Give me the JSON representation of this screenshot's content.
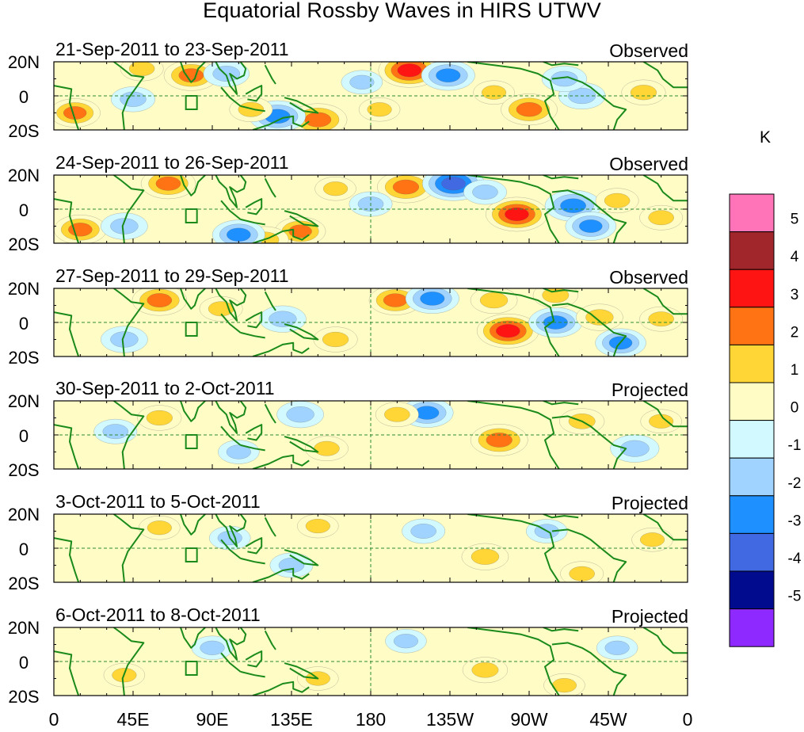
{
  "title": "Equatorial Rossby Waves in HIRS UTWV",
  "chart_data": {
    "type": "heatmap",
    "title": "Equatorial Rossby Waves in HIRS UTWV",
    "variable": "HIRS UTWV anomaly",
    "units": "K",
    "lat_range": [
      -20,
      20
    ],
    "lon_range": [
      0,
      360
    ],
    "y_ticks": [
      "20N",
      "0",
      "20S"
    ],
    "x_ticks": [
      "0",
      "45E",
      "90E",
      "135E",
      "180",
      "135W",
      "90W",
      "45W",
      "0"
    ],
    "colorbar": {
      "label": "K",
      "tick_labels": [
        "5",
        "4",
        "3",
        "2",
        "1",
        "0",
        "-1",
        "-2",
        "-3",
        "-4",
        "-5"
      ],
      "colors": [
        "#ff73b9",
        "#a0262b",
        "#ff1414",
        "#ff7315",
        "#ffd635",
        "#fffcc6",
        "#d2f9ff",
        "#a0d3ff",
        "#1e90ff",
        "#4169e1",
        "#000b8e",
        "#8e29ff"
      ]
    },
    "panels": [
      {
        "period": "21-Sep-2011 to 23-Sep-2011",
        "status": "Observed",
        "features": [
          {
            "lon": 78,
            "lat": 12,
            "value": 2.4
          },
          {
            "lon": 50,
            "lat": 16,
            "value": 1.2
          },
          {
            "lon": 12,
            "lat": -10,
            "value": 2.0
          },
          {
            "lon": 202,
            "lat": 15,
            "value": 3.2
          },
          {
            "lon": 224,
            "lat": 12,
            "value": -2.3
          },
          {
            "lon": 250,
            "lat": 2,
            "value": 1.0
          },
          {
            "lon": 270,
            "lat": -8,
            "value": 2.6
          },
          {
            "lon": 150,
            "lat": -14,
            "value": 2.8
          },
          {
            "lon": 127,
            "lat": -12,
            "value": -2.6
          },
          {
            "lon": 98,
            "lat": 13,
            "value": -1.5
          },
          {
            "lon": 300,
            "lat": 0,
            "value": -1.6
          },
          {
            "lon": 290,
            "lat": 10,
            "value": -1.4
          },
          {
            "lon": 112,
            "lat": -8,
            "value": 1.2
          },
          {
            "lon": 45,
            "lat": -2,
            "value": -1.3
          },
          {
            "lon": 335,
            "lat": 2,
            "value": 1.3
          },
          {
            "lon": 175,
            "lat": 8,
            "value": -1.0
          },
          {
            "lon": 185,
            "lat": -8,
            "value": 1.0
          }
        ]
      },
      {
        "period": "24-Sep-2011 to 26-Sep-2011",
        "status": "Observed",
        "features": [
          {
            "lon": 65,
            "lat": 15,
            "value": 2.4
          },
          {
            "lon": 200,
            "lat": 13,
            "value": 2.7
          },
          {
            "lon": 227,
            "lat": 15,
            "value": -3.2
          },
          {
            "lon": 263,
            "lat": -3,
            "value": 3.2
          },
          {
            "lon": 295,
            "lat": 2,
            "value": -2.6
          },
          {
            "lon": 305,
            "lat": -10,
            "value": -2.0
          },
          {
            "lon": 140,
            "lat": -13,
            "value": 2.0
          },
          {
            "lon": 120,
            "lat": -18,
            "value": 1.6
          },
          {
            "lon": 15,
            "lat": -12,
            "value": 2.2
          },
          {
            "lon": 40,
            "lat": -10,
            "value": -1.6
          },
          {
            "lon": 105,
            "lat": -15,
            "value": -2.2
          },
          {
            "lon": 320,
            "lat": 5,
            "value": 1.2
          },
          {
            "lon": 180,
            "lat": 3,
            "value": -1.2
          },
          {
            "lon": 160,
            "lat": 12,
            "value": 1.0
          },
          {
            "lon": 245,
            "lat": 10,
            "value": -1.2
          },
          {
            "lon": 345,
            "lat": -5,
            "value": 1.2
          }
        ]
      },
      {
        "period": "27-Sep-2011 to 29-Sep-2011",
        "status": "Observed",
        "features": [
          {
            "lon": 60,
            "lat": 13,
            "value": 2.4
          },
          {
            "lon": 194,
            "lat": 13,
            "value": 2.2
          },
          {
            "lon": 215,
            "lat": 14,
            "value": -2.3
          },
          {
            "lon": 250,
            "lat": 13,
            "value": 1.6
          },
          {
            "lon": 258,
            "lat": -5,
            "value": 3.2
          },
          {
            "lon": 285,
            "lat": 0,
            "value": -2.3
          },
          {
            "lon": 310,
            "lat": 3,
            "value": 1.6
          },
          {
            "lon": 322,
            "lat": -12,
            "value": -2.0
          },
          {
            "lon": 285,
            "lat": 16,
            "value": 1.4
          },
          {
            "lon": 130,
            "lat": 2,
            "value": -1.6
          },
          {
            "lon": 40,
            "lat": -10,
            "value": -1.6
          },
          {
            "lon": 160,
            "lat": -10,
            "value": 1.3
          },
          {
            "lon": 345,
            "lat": 2,
            "value": 1.2
          },
          {
            "lon": 95,
            "lat": 8,
            "value": 1.2
          }
        ]
      },
      {
        "period": "30-Sep-2011 to 2-Oct-2011",
        "status": "Projected",
        "features": [
          {
            "lon": 253,
            "lat": -3,
            "value": 2.7
          },
          {
            "lon": 212,
            "lat": 13,
            "value": -2.2
          },
          {
            "lon": 140,
            "lat": 12,
            "value": -1.6
          },
          {
            "lon": 60,
            "lat": 10,
            "value": 1.3
          },
          {
            "lon": 330,
            "lat": -8,
            "value": -1.8
          },
          {
            "lon": 300,
            "lat": 8,
            "value": 1.4
          },
          {
            "lon": 155,
            "lat": -8,
            "value": 1.2
          },
          {
            "lon": 195,
            "lat": 12,
            "value": 1.2
          },
          {
            "lon": 35,
            "lat": 2,
            "value": -1.2
          },
          {
            "lon": 105,
            "lat": -10,
            "value": -1.0
          },
          {
            "lon": 345,
            "lat": 8,
            "value": 1.0
          }
        ]
      },
      {
        "period": "3-Oct-2011 to 5-Oct-2011",
        "status": "Projected",
        "features": [
          {
            "lon": 245,
            "lat": -5,
            "value": 1.6
          },
          {
            "lon": 210,
            "lat": 10,
            "value": -1.2
          },
          {
            "lon": 135,
            "lat": -10,
            "value": -1.2
          },
          {
            "lon": 150,
            "lat": 13,
            "value": 1.0
          },
          {
            "lon": 60,
            "lat": 12,
            "value": 1.0
          },
          {
            "lon": 100,
            "lat": 6,
            "value": -1.0
          },
          {
            "lon": 300,
            "lat": -15,
            "value": 1.2
          },
          {
            "lon": 340,
            "lat": 5,
            "value": 1.0
          },
          {
            "lon": 280,
            "lat": 10,
            "value": -1.0
          }
        ]
      },
      {
        "period": "6-Oct-2011 to 8-Oct-2011",
        "status": "Projected",
        "features": [
          {
            "lon": 245,
            "lat": -5,
            "value": 1.4
          },
          {
            "lon": 200,
            "lat": 12,
            "value": -1.0
          },
          {
            "lon": 150,
            "lat": -10,
            "value": 1.0
          },
          {
            "lon": 90,
            "lat": 8,
            "value": -1.0
          },
          {
            "lon": 40,
            "lat": -8,
            "value": 1.0
          },
          {
            "lon": 290,
            "lat": -14,
            "value": 1.0
          },
          {
            "lon": 320,
            "lat": 8,
            "value": -1.0
          }
        ]
      }
    ]
  }
}
